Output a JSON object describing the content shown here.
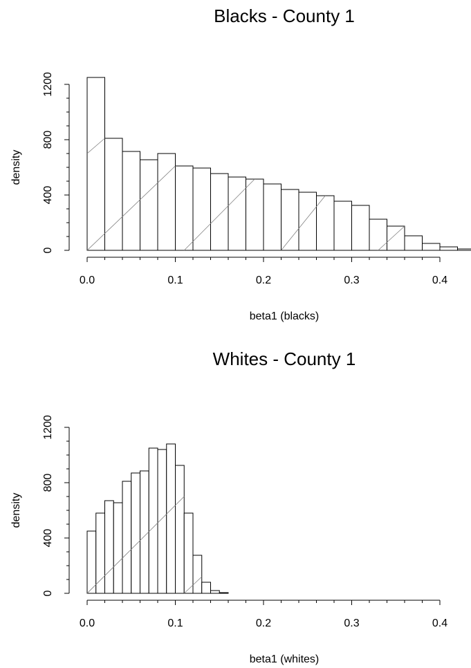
{
  "chart_data": [
    {
      "type": "bar",
      "title": "Blacks - County 1",
      "xlabel": "beta1 (blacks)",
      "ylabel": "density",
      "xlim": [
        0.0,
        0.4
      ],
      "ylim": [
        0,
        1200
      ],
      "xticks": [
        "0.0",
        "0.1",
        "0.2",
        "0.3",
        "0.4"
      ],
      "yticks": [
        "0",
        "400",
        "800",
        "1200"
      ],
      "bin_width": 0.02,
      "bin_starts": [
        0.0,
        0.02,
        0.04,
        0.06,
        0.08,
        0.1,
        0.12,
        0.14,
        0.16,
        0.18,
        0.2,
        0.22,
        0.24,
        0.26,
        0.28,
        0.3,
        0.32,
        0.34,
        0.36,
        0.38,
        0.4,
        0.42
      ],
      "values": [
        1250,
        810,
        715,
        655,
        700,
        610,
        595,
        555,
        530,
        515,
        480,
        440,
        420,
        395,
        355,
        325,
        225,
        175,
        105,
        50,
        25,
        10
      ],
      "diagonal_lines": [
        {
          "x": [
            0.0,
            0.02
          ],
          "y": [
            700,
            810
          ]
        },
        {
          "x": [
            0.0,
            0.1
          ],
          "y": [
            0,
            610
          ]
        },
        {
          "x": [
            0.11,
            0.19
          ],
          "y": [
            0,
            515
          ]
        },
        {
          "x": [
            0.22,
            0.27
          ],
          "y": [
            0,
            395
          ]
        },
        {
          "x": [
            0.33,
            0.36
          ],
          "y": [
            0,
            175
          ]
        }
      ]
    },
    {
      "type": "bar",
      "title": "Whites - County 1",
      "xlabel": "beta1 (whites)",
      "ylabel": "density",
      "xlim": [
        0.0,
        0.4
      ],
      "ylim": [
        0,
        1200
      ],
      "xticks": [
        "0.0",
        "0.1",
        "0.2",
        "0.3",
        "0.4"
      ],
      "yticks": [
        "0",
        "400",
        "800",
        "1200"
      ],
      "bin_width": 0.01,
      "bin_starts": [
        0.0,
        0.01,
        0.02,
        0.03,
        0.04,
        0.05,
        0.06,
        0.07,
        0.08,
        0.09,
        0.1,
        0.11,
        0.12,
        0.13,
        0.14,
        0.15
      ],
      "values": [
        450,
        580,
        670,
        655,
        810,
        870,
        885,
        1050,
        1040,
        1080,
        925,
        580,
        275,
        80,
        20,
        5
      ],
      "diagonal_lines": [
        {
          "x": [
            0.0,
            0.11
          ],
          "y": [
            0,
            700
          ]
        },
        {
          "x": [
            0.11,
            0.13
          ],
          "y": [
            0,
            120
          ]
        }
      ]
    }
  ]
}
